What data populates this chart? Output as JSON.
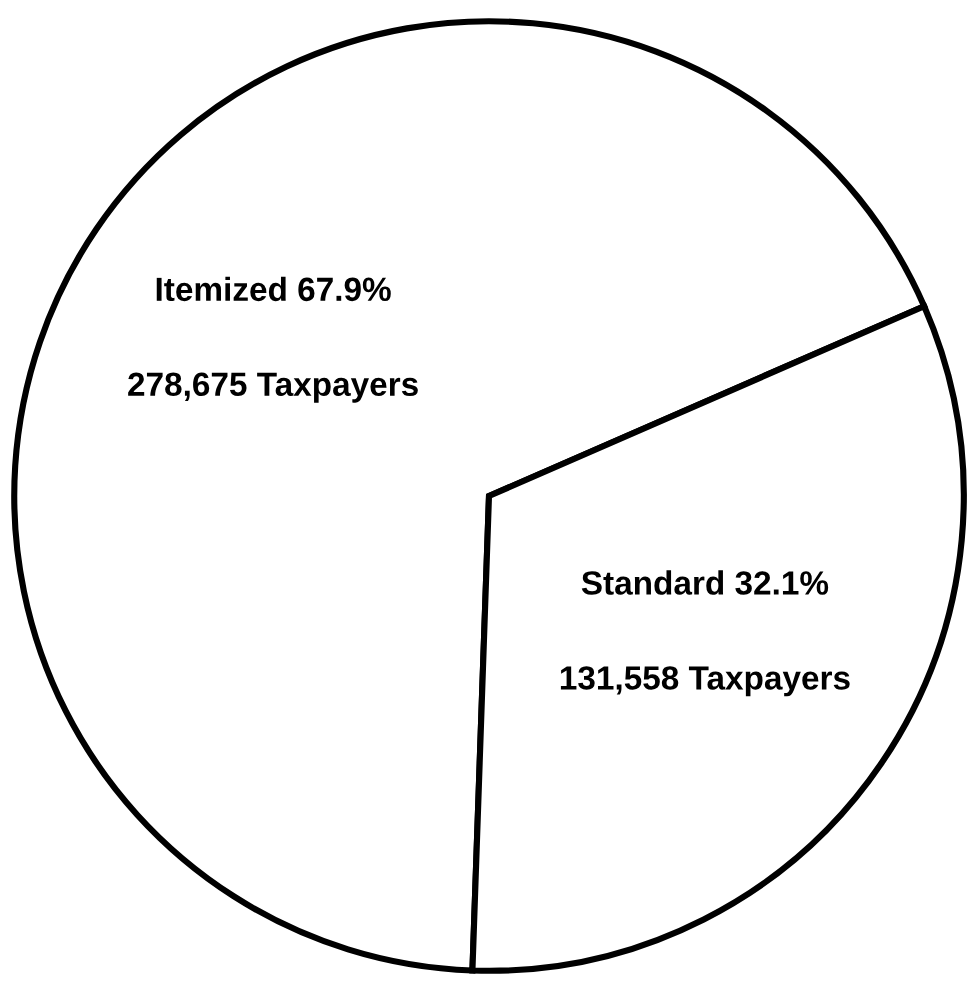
{
  "chart_data": {
    "type": "pie",
    "categories": [
      "Itemized",
      "Standard"
    ],
    "values": [
      67.9,
      32.1
    ],
    "colors": [
      "#ffffff",
      "#ffffff"
    ],
    "value_labels": [
      "67.9%",
      "32.1%"
    ],
    "annotations": [
      "278,675 Taxpayers",
      "131,558 Taxpayers"
    ],
    "legend": false
  }
}
